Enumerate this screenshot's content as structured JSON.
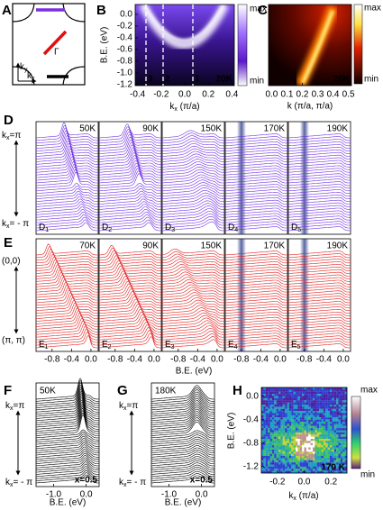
{
  "panel_a": {
    "label": "A",
    "gamma": "Γ",
    "ky": [
      "k",
      "y"
    ],
    "kx": [
      "k",
      "x"
    ]
  },
  "panel_b": {
    "label": "B",
    "ylabel": "B.E. (eV)",
    "xlabel": [
      "k",
      "x",
      " (π/a)"
    ],
    "ylim": [
      -1.22,
      0.17
    ],
    "yticks": [
      {
        "value": 0,
        "label": "0.0"
      },
      -0.2,
      -0.4,
      -0.6,
      -0.8,
      {
        "value": -1,
        "label": "-1.0"
      },
      -1.2
    ],
    "xlim": [
      -0.42,
      0.42
    ],
    "xticks": [
      -0.4,
      -0.2,
      {
        "value": 0,
        "label": "0.0"
      },
      0.2,
      0.4
    ],
    "cuts": [
      "3",
      "2",
      "1"
    ],
    "colorbar": [
      "max",
      "min"
    ],
    "temperature": "20K"
  },
  "panel_c": {
    "label": "C",
    "xlabel": "k (π/a, π/a)",
    "xlim": [
      -0.02,
      0.52
    ],
    "xticks": [
      {
        "value": 0,
        "label": "0.0"
      },
      0.1,
      0.2,
      0.3,
      0.4,
      0.5
    ],
    "colorbar": [
      "max",
      "min"
    ],
    "temperature": "20K"
  },
  "panel_d": {
    "label": "D",
    "top": [
      "k",
      "x",
      "=π"
    ],
    "bottom": [
      "k",
      "x",
      "= - π"
    ],
    "subpanels": [
      {
        "temperature": "50K",
        "tag": [
          "D",
          "1"
        ]
      },
      {
        "temperature": "90K",
        "tag": [
          "D",
          "2"
        ]
      },
      {
        "temperature": "150K",
        "tag": [
          "D",
          "3"
        ]
      },
      {
        "temperature": "170K",
        "tag": [
          "D",
          "4"
        ]
      },
      {
        "temperature": "190K",
        "tag": [
          "D",
          "5"
        ]
      }
    ]
  },
  "panel_e": {
    "label": "E",
    "top": "(0,0)",
    "bottom": "(π, π)",
    "xlabel": "B.E. (eV)",
    "xlim": [
      -1.13,
      0.15
    ],
    "xticks": [
      -0.8,
      -0.4,
      {
        "value": 0,
        "label": "0.0"
      }
    ],
    "subpanels": [
      {
        "temperature": "70K",
        "tag": [
          "E",
          "1"
        ]
      },
      {
        "temperature": "90K",
        "tag": [
          "E",
          "2"
        ]
      },
      {
        "temperature": "150K",
        "tag": [
          "E",
          "3"
        ]
      },
      {
        "temperature": "170K",
        "tag": [
          "E",
          "4"
        ]
      },
      {
        "temperature": "190K",
        "tag": [
          "E",
          "5"
        ]
      }
    ]
  },
  "panel_f": {
    "label": "F",
    "temperature": "50K",
    "doping": "x=0.5",
    "top": [
      "k",
      "x",
      "=π"
    ],
    "bottom": [
      "k",
      "x",
      "= - π"
    ],
    "xlabel": "B.E. (eV)",
    "xlim": [
      -1.54,
      0.4
    ],
    "xticks": [
      {
        "value": -1,
        "label": "-1.0"
      },
      {
        "value": 0,
        "label": "0.0"
      }
    ]
  },
  "panel_g": {
    "label": "G",
    "temperature": "180K",
    "doping": "x=0.5",
    "top": [
      "k",
      "x",
      "=π"
    ],
    "bottom": [
      "k",
      "x",
      "= - π"
    ],
    "xlabel": "B.E. (eV)",
    "xlim": [
      -1.54,
      0.4
    ],
    "xticks": [
      {
        "value": -1,
        "label": "-1.0"
      },
      {
        "value": 0,
        "label": "0.0"
      }
    ]
  },
  "panel_h": {
    "label": "H",
    "ylabel": "B.E. (eV)",
    "xlabel": [
      "k",
      "x",
      " (π/a)"
    ],
    "ylim": [
      -1.31,
      0.15
    ],
    "yticks": [
      {
        "value": 0,
        "label": "0.0"
      },
      -0.4,
      -0.8,
      -1.2
    ],
    "xlim": [
      -0.32,
      0.32
    ],
    "xticks": [
      -0.2,
      {
        "value": 0,
        "label": "0.0"
      },
      0.2
    ],
    "colorbar": [
      "max",
      "min"
    ],
    "temperature": "170 K"
  }
}
